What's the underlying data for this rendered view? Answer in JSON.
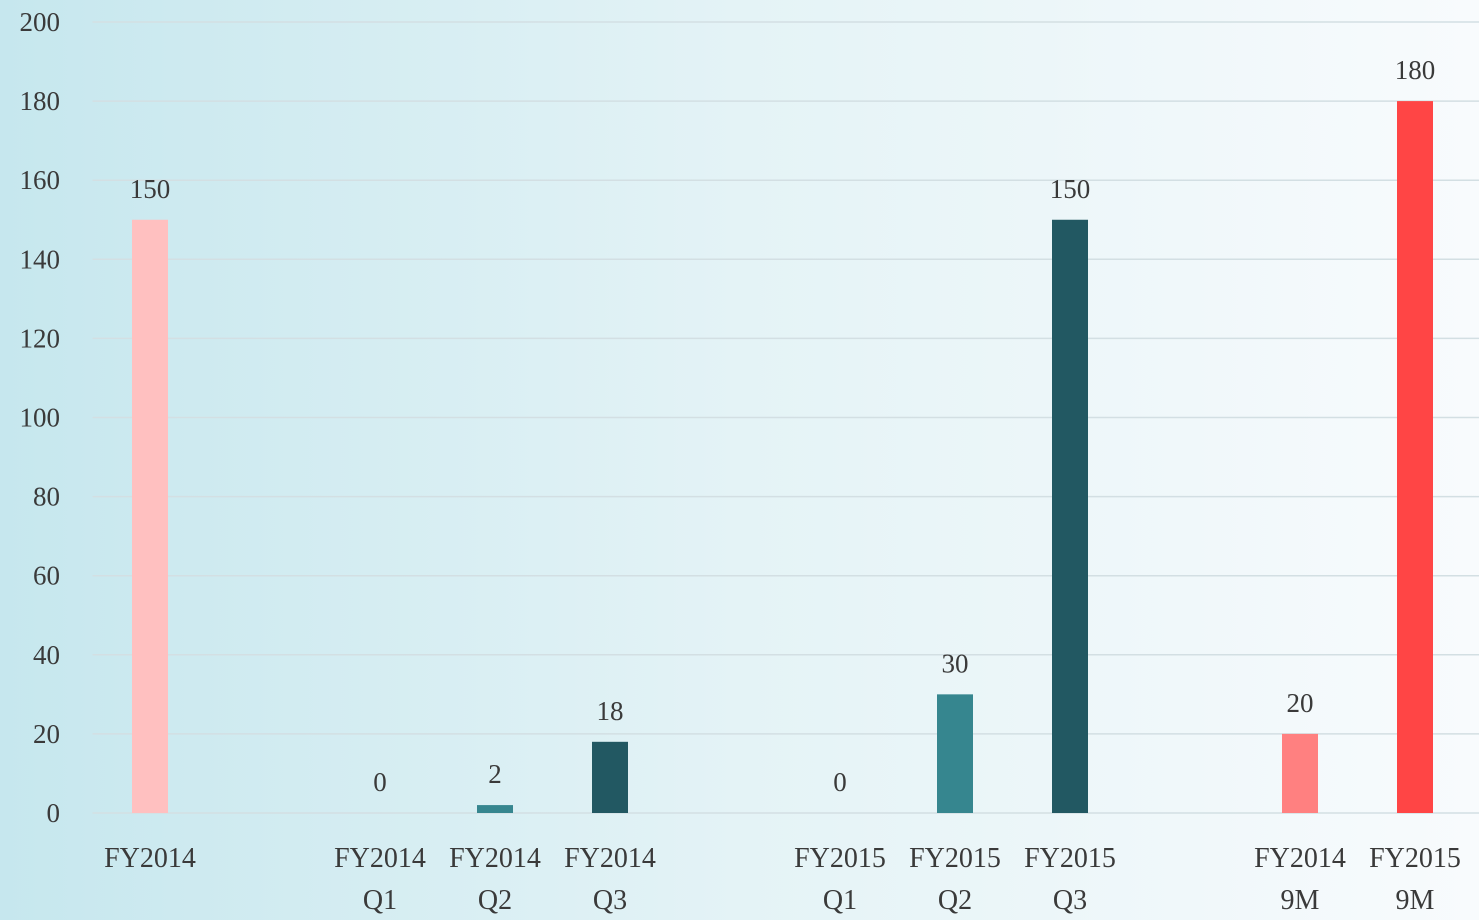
{
  "chart_data": {
    "type": "bar",
    "categories": [
      "FY2014",
      null,
      "FY2014\nQ1",
      "FY2014\nQ2",
      "FY2014\nQ3",
      null,
      "FY2015\nQ1",
      "FY2015\nQ2",
      "FY2015\nQ3",
      null,
      "FY2014\n9M",
      "FY2015\n9M"
    ],
    "values": [
      150,
      null,
      0,
      2,
      18,
      null,
      0,
      30,
      150,
      null,
      20,
      180
    ],
    "colors": [
      "#ffc0c0",
      null,
      "#5aa7b2",
      "#36868f",
      "#225862",
      null,
      "#5aa7b2",
      "#36868f",
      "#225862",
      null,
      "#ff8080",
      "#ff4545"
    ],
    "ylim": [
      0,
      200
    ],
    "yticks": [
      0,
      20,
      40,
      60,
      80,
      100,
      120,
      140,
      160,
      180,
      200
    ],
    "grid": true
  }
}
